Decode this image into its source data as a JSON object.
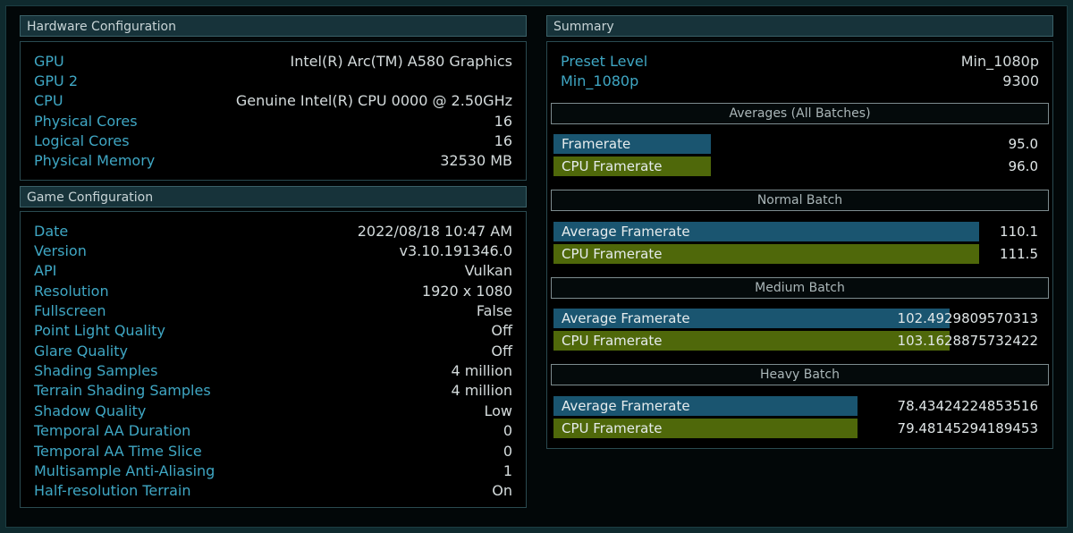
{
  "hardware": {
    "title": "Hardware Configuration",
    "rows": [
      {
        "k": "GPU",
        "v": "Intel(R) Arc(TM) A580 Graphics"
      },
      {
        "k": "GPU 2",
        "v": ""
      },
      {
        "k": "CPU",
        "v": "Genuine Intel(R) CPU 0000 @ 2.50GHz"
      },
      {
        "k": "Physical Cores",
        "v": "16"
      },
      {
        "k": "Logical Cores",
        "v": "16"
      },
      {
        "k": "Physical Memory",
        "v": "32530 MB"
      }
    ]
  },
  "game": {
    "title": "Game Configuration",
    "rows": [
      {
        "k": "Date",
        "v": "2022/08/18 10:47 AM"
      },
      {
        "k": "Version",
        "v": "v3.10.191346.0"
      },
      {
        "k": "API",
        "v": "Vulkan"
      },
      {
        "k": "Resolution",
        "v": "1920 x 1080"
      },
      {
        "k": "Fullscreen",
        "v": "False"
      },
      {
        "k": "Point Light Quality",
        "v": "Off"
      },
      {
        "k": "Glare Quality",
        "v": "Off"
      },
      {
        "k": "Shading Samples",
        "v": "4 million"
      },
      {
        "k": "Terrain Shading Samples",
        "v": "4 million"
      },
      {
        "k": "Shadow Quality",
        "v": "Low"
      },
      {
        "k": "Temporal AA Duration",
        "v": "0"
      },
      {
        "k": "Temporal AA Time Slice",
        "v": "0"
      },
      {
        "k": "Multisample Anti-Aliasing",
        "v": "1"
      },
      {
        "k": "Half-resolution Terrain",
        "v": "On"
      }
    ]
  },
  "summary": {
    "title": "Summary",
    "rows": [
      {
        "k": "Preset Level",
        "v": "Min_1080p"
      },
      {
        "k": "Min_1080p",
        "v": "9300"
      }
    ],
    "batches": [
      {
        "title": "Averages (All Batches)",
        "items": [
          {
            "label": "Framerate",
            "value": "95.0",
            "color": "#1a5570",
            "fill": 0.318
          },
          {
            "label": "CPU Framerate",
            "value": "96.0",
            "color": "#4f680a",
            "fill": 0.318
          }
        ]
      },
      {
        "title": "Normal Batch",
        "items": [
          {
            "label": "Average Framerate",
            "value": "110.1",
            "color": "#1a5570",
            "fill": 0.86
          },
          {
            "label": "CPU Framerate",
            "value": "111.5",
            "color": "#4f680a",
            "fill": 0.86
          }
        ]
      },
      {
        "title": "Medium Batch",
        "items": [
          {
            "label": "Average Framerate",
            "value": "102.4929809570313",
            "color": "#1a5570",
            "fill": 0.8
          },
          {
            "label": "CPU Framerate",
            "value": "103.1628875732422",
            "color": "#4f680a",
            "fill": 0.8
          }
        ]
      },
      {
        "title": "Heavy Batch",
        "items": [
          {
            "label": "Average Framerate",
            "value": "78.43424224853516",
            "color": "#1a5570",
            "fill": 0.613
          },
          {
            "label": "CPU Framerate",
            "value": "79.48145294189453",
            "color": "#4f680a",
            "fill": 0.613
          }
        ]
      }
    ]
  }
}
